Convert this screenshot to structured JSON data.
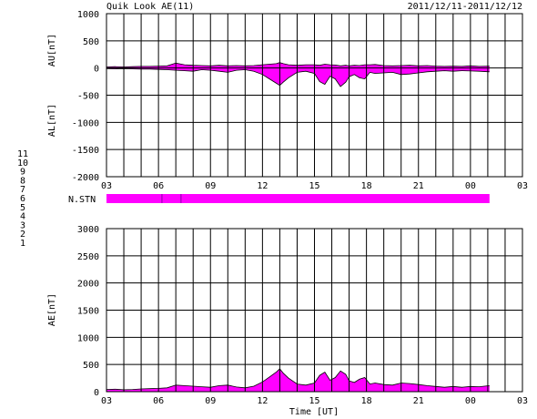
{
  "title": "Quik Look AE(11)",
  "date_range": "2011/12/11-2011/12/12",
  "xlabel": "Time [UT]",
  "x_ticks": [
    "03",
    "06",
    "09",
    "12",
    "15",
    "18",
    "21",
    "00",
    "03"
  ],
  "nstn_label": "N.STN",
  "station_legend": [
    {
      "label": "11",
      "color": "#00e5e5"
    },
    {
      "label": "10",
      "color": "#ff00ff"
    },
    {
      "label": "9",
      "color": "#1a1acc"
    },
    {
      "label": "8",
      "color": "#dddd00"
    },
    {
      "label": "7",
      "color": "#99ee66"
    },
    {
      "label": "6",
      "color": "#ff0000"
    },
    {
      "label": "5",
      "color": "#bbbbbb"
    },
    {
      "label": "4",
      "color": "#999999"
    },
    {
      "label": "3",
      "color": "#22aaaa"
    },
    {
      "label": "2",
      "color": "#bb00bb"
    },
    {
      "label": "1",
      "color": "#0000cc"
    }
  ],
  "colors": {
    "fill": "#ff00ff",
    "grid": "#000000",
    "nstn_marker": "#8800aa"
  },
  "chart_data": [
    {
      "type": "area",
      "ylabel_top": "AU[nT]",
      "ylabel_bottom": "AL[nT]",
      "ylim": [
        -2000,
        1000
      ],
      "y_ticks": [
        1000,
        500,
        0,
        -500,
        -1000,
        -1500,
        -2000
      ],
      "xlim": [
        3,
        27
      ],
      "data_end": 25.1,
      "x": [
        3.0,
        3.5,
        4.0,
        4.5,
        5.0,
        5.5,
        6.0,
        6.5,
        7.0,
        7.5,
        8.0,
        8.5,
        9.0,
        9.5,
        10.0,
        10.5,
        11.0,
        11.5,
        12.0,
        12.4,
        12.8,
        13.0,
        13.2,
        13.5,
        14.0,
        14.5,
        15.0,
        15.3,
        15.6,
        15.9,
        16.2,
        16.5,
        16.8,
        17.0,
        17.3,
        17.6,
        17.9,
        18.2,
        18.5,
        19.0,
        19.5,
        20.0,
        20.5,
        21.0,
        21.5,
        22.0,
        22.5,
        23.0,
        23.5,
        24.0,
        24.5,
        25.1
      ],
      "series": [
        {
          "values": [
            20,
            25,
            20,
            25,
            30,
            30,
            35,
            40,
            90,
            60,
            50,
            45,
            40,
            50,
            40,
            45,
            40,
            45,
            60,
            70,
            80,
            100,
            80,
            60,
            50,
            60,
            60,
            50,
            70,
            60,
            55,
            40,
            50,
            40,
            50,
            45,
            60,
            60,
            65,
            45,
            40,
            45,
            50,
            40,
            45,
            35,
            30,
            35,
            30,
            40,
            30,
            35
          ]
        },
        {
          "values": [
            -10,
            -15,
            -10,
            -15,
            -20,
            -20,
            -25,
            -30,
            -40,
            -50,
            -60,
            -30,
            -40,
            -60,
            -80,
            -40,
            -30,
            -60,
            -120,
            -200,
            -280,
            -320,
            -260,
            -180,
            -80,
            -60,
            -100,
            -250,
            -300,
            -150,
            -200,
            -340,
            -260,
            -160,
            -120,
            -180,
            -200,
            -80,
            -100,
            -90,
            -80,
            -120,
            -110,
            -90,
            -70,
            -60,
            -50,
            -60,
            -50,
            -55,
            -60,
            -70
          ]
        }
      ]
    },
    {
      "type": "area",
      "ylabel": "AE[nT]",
      "ylim": [
        0,
        3000
      ],
      "y_ticks": [
        3000,
        2500,
        2000,
        1500,
        1000,
        500,
        0
      ],
      "xlim": [
        3,
        27
      ],
      "data_end": 25.1,
      "x": [
        3.0,
        3.5,
        4.0,
        4.5,
        5.0,
        5.5,
        6.0,
        6.5,
        7.0,
        7.5,
        8.0,
        8.5,
        9.0,
        9.5,
        10.0,
        10.5,
        11.0,
        11.5,
        12.0,
        12.4,
        12.8,
        13.0,
        13.2,
        13.5,
        14.0,
        14.5,
        15.0,
        15.3,
        15.6,
        15.9,
        16.2,
        16.5,
        16.8,
        17.0,
        17.3,
        17.6,
        17.9,
        18.2,
        18.5,
        19.0,
        19.5,
        20.0,
        20.5,
        21.0,
        21.5,
        22.0,
        22.5,
        23.0,
        23.5,
        24.0,
        24.5,
        25.1
      ],
      "series": [
        {
          "values": [
            40,
            45,
            35,
            40,
            50,
            55,
            60,
            70,
            120,
            110,
            100,
            90,
            80,
            110,
            120,
            85,
            70,
            100,
            180,
            270,
            360,
            420,
            340,
            250,
            140,
            120,
            160,
            300,
            360,
            210,
            260,
            380,
            320,
            200,
            170,
            230,
            260,
            140,
            160,
            130,
            120,
            160,
            150,
            130,
            110,
            95,
            80,
            95,
            80,
            95,
            90,
            110
          ]
        }
      ]
    }
  ]
}
